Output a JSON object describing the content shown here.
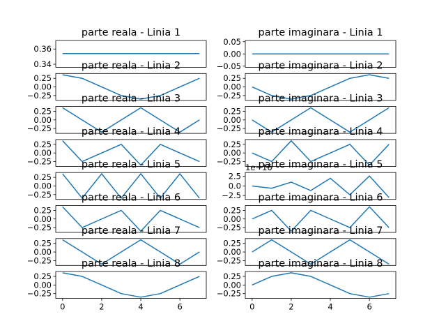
{
  "chart_data": [
    {
      "type": "line",
      "title": "parte reala - Linia 1",
      "x": [
        0,
        1,
        2,
        3,
        4,
        5,
        6,
        7
      ],
      "values": [
        0.354,
        0.354,
        0.354,
        0.354,
        0.354,
        0.354,
        0.354,
        0.354
      ],
      "ylim": [
        0.3359,
        0.3712
      ],
      "yticks": [
        0.34,
        0.36
      ],
      "xticks": [],
      "color": "#1f77b4"
    },
    {
      "type": "line",
      "title": "parte imaginara - Linia 1",
      "x": [
        0,
        1,
        2,
        3,
        4,
        5,
        6,
        7
      ],
      "values": [
        0,
        0,
        0,
        0,
        0,
        0,
        0,
        0
      ],
      "ylim": [
        -0.055,
        0.055
      ],
      "yticks": [
        -0.05,
        0.0,
        0.05
      ],
      "xticks": [],
      "color": "#1f77b4"
    },
    {
      "type": "line",
      "title": "parte reala - Linia 2",
      "x": [
        0,
        1,
        2,
        3,
        4,
        5,
        6,
        7
      ],
      "values": [
        0.354,
        0.25,
        0,
        -0.25,
        -0.354,
        -0.25,
        0,
        0.25
      ],
      "ylim": [
        -0.39,
        0.39
      ],
      "yticks": [
        -0.25,
        0.0,
        0.25
      ],
      "xticks": [],
      "color": "#1f77b4"
    },
    {
      "type": "line",
      "title": "parte imaginara - Linia 2",
      "x": [
        0,
        1,
        2,
        3,
        4,
        5,
        6,
        7
      ],
      "values": [
        0,
        -0.25,
        -0.354,
        -0.25,
        0,
        0.25,
        0.354,
        0.25
      ],
      "ylim": [
        -0.39,
        0.39
      ],
      "yticks": [
        -0.25,
        0.0,
        0.25
      ],
      "xticks": [],
      "color": "#1f77b4"
    },
    {
      "type": "line",
      "title": "parte reala - Linia 3",
      "x": [
        0,
        1,
        2,
        3,
        4,
        5,
        6,
        7
      ],
      "values": [
        0.354,
        0,
        -0.354,
        0,
        0.354,
        0,
        -0.354,
        0
      ],
      "ylim": [
        -0.39,
        0.39
      ],
      "yticks": [
        -0.25,
        0.0,
        0.25
      ],
      "xticks": [],
      "color": "#1f77b4"
    },
    {
      "type": "line",
      "title": "parte imaginara - Linia 3",
      "x": [
        0,
        1,
        2,
        3,
        4,
        5,
        6,
        7
      ],
      "values": [
        0,
        -0.354,
        0,
        0.354,
        0,
        -0.354,
        0,
        0.354
      ],
      "ylim": [
        -0.39,
        0.39
      ],
      "yticks": [
        -0.25,
        0.0,
        0.25
      ],
      "xticks": [],
      "color": "#1f77b4"
    },
    {
      "type": "line",
      "title": "parte reala - Linia 4",
      "x": [
        0,
        1,
        2,
        3,
        4,
        5,
        6,
        7
      ],
      "values": [
        0.354,
        -0.25,
        0,
        0.25,
        -0.354,
        0.25,
        0,
        -0.25
      ],
      "ylim": [
        -0.39,
        0.39
      ],
      "yticks": [
        -0.25,
        0.0,
        0.25
      ],
      "xticks": [],
      "color": "#1f77b4"
    },
    {
      "type": "line",
      "title": "parte imaginara - Linia 4",
      "x": [
        0,
        1,
        2,
        3,
        4,
        5,
        6,
        7
      ],
      "values": [
        0,
        -0.25,
        0.354,
        -0.25,
        0,
        0.25,
        -0.354,
        0.25
      ],
      "ylim": [
        -0.39,
        0.39
      ],
      "yticks": [
        -0.25,
        0.0,
        0.25
      ],
      "xticks": [],
      "color": "#1f77b4"
    },
    {
      "type": "line",
      "title": "parte reala - Linia 5",
      "x": [
        0,
        1,
        2,
        3,
        4,
        5,
        6,
        7
      ],
      "values": [
        0.354,
        -0.354,
        0.354,
        -0.354,
        0.354,
        -0.354,
        0.354,
        -0.354
      ],
      "ylim": [
        -0.39,
        0.39
      ],
      "yticks": [
        -0.25,
        0.0,
        0.25
      ],
      "xticks": [],
      "color": "#1f77b4"
    },
    {
      "type": "line",
      "title": "parte imaginara - Linia 5",
      "x": [
        0,
        1,
        2,
        3,
        4,
        5,
        6,
        7
      ],
      "values": [
        0,
        -0.6,
        1.0,
        -1.2,
        2.0,
        -2.3,
        2.6,
        -3.0
      ],
      "ylim": [
        -3.5,
        3.5
      ],
      "yticks": [
        -2.5,
        0.0,
        2.5
      ],
      "offset_text": "1e−16",
      "xticks": [],
      "color": "#1f77b4"
    },
    {
      "type": "line",
      "title": "parte reala - Linia 6",
      "x": [
        0,
        1,
        2,
        3,
        4,
        5,
        6,
        7
      ],
      "values": [
        0.354,
        -0.25,
        0,
        0.25,
        -0.354,
        0.25,
        0,
        -0.25
      ],
      "ylim": [
        -0.39,
        0.39
      ],
      "yticks": [
        -0.25,
        0.0,
        0.25
      ],
      "xticks": [],
      "color": "#1f77b4"
    },
    {
      "type": "line",
      "title": "parte imaginara - Linia 6",
      "x": [
        0,
        1,
        2,
        3,
        4,
        5,
        6,
        7
      ],
      "values": [
        0,
        0.25,
        -0.354,
        0.25,
        0,
        -0.25,
        0.354,
        -0.25
      ],
      "ylim": [
        -0.39,
        0.39
      ],
      "yticks": [
        -0.25,
        0.0,
        0.25
      ],
      "xticks": [],
      "color": "#1f77b4"
    },
    {
      "type": "line",
      "title": "parte reala - Linia 7",
      "x": [
        0,
        1,
        2,
        3,
        4,
        5,
        6,
        7
      ],
      "values": [
        0.354,
        0,
        -0.354,
        0,
        0.354,
        0,
        -0.354,
        0
      ],
      "ylim": [
        -0.39,
        0.39
      ],
      "yticks": [
        -0.25,
        0.0,
        0.25
      ],
      "xticks": [],
      "color": "#1f77b4"
    },
    {
      "type": "line",
      "title": "parte imaginara - Linia 7",
      "x": [
        0,
        1,
        2,
        3,
        4,
        5,
        6,
        7
      ],
      "values": [
        0,
        0.354,
        0,
        -0.354,
        0,
        0.354,
        0,
        -0.354
      ],
      "ylim": [
        -0.39,
        0.39
      ],
      "yticks": [
        -0.25,
        0.0,
        0.25
      ],
      "xticks": [],
      "color": "#1f77b4"
    },
    {
      "type": "line",
      "title": "parte reala - Linia 8",
      "x": [
        0,
        1,
        2,
        3,
        4,
        5,
        6,
        7
      ],
      "values": [
        0.354,
        0.25,
        0,
        -0.25,
        -0.354,
        -0.25,
        0,
        0.25
      ],
      "ylim": [
        -0.39,
        0.39
      ],
      "yticks": [
        -0.25,
        0.0,
        0.25
      ],
      "xticks": [
        0,
        2,
        4,
        6
      ],
      "color": "#1f77b4"
    },
    {
      "type": "line",
      "title": "parte imaginara - Linia 8",
      "x": [
        0,
        1,
        2,
        3,
        4,
        5,
        6,
        7
      ],
      "values": [
        0,
        0.25,
        0.354,
        0.25,
        0,
        -0.25,
        -0.354,
        -0.25
      ],
      "ylim": [
        -0.39,
        0.39
      ],
      "yticks": [
        -0.25,
        0.0,
        0.25
      ],
      "xticks": [
        0,
        2,
        4,
        6
      ],
      "color": "#1f77b4"
    }
  ]
}
